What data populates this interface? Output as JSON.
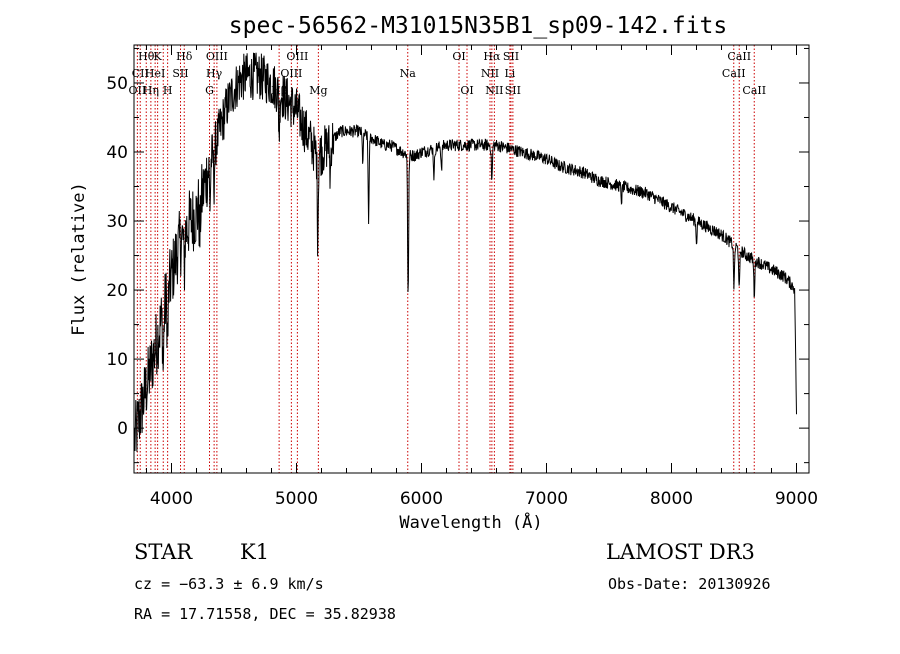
{
  "chart_data": {
    "type": "line",
    "title": "spec-56562-M31015N35B1_sp09-142.fits",
    "xlabel": "Wavelength (Å)",
    "ylabel": "Flux (relative)",
    "xlim": [
      3700,
      9100
    ],
    "ylim": [
      -6.5,
      55.5
    ],
    "xticks": [
      4000,
      5000,
      6000,
      7000,
      8000,
      9000
    ],
    "yticks": [
      0,
      10,
      20,
      30,
      40,
      50
    ],
    "grid": false,
    "series": [
      {
        "x": [
          3700,
          3750,
          3800,
          3850,
          3900,
          3950,
          4000,
          4050,
          4100,
          4150,
          4200,
          4250,
          4300,
          4350,
          4400,
          4450,
          4500,
          4550,
          4600,
          4650,
          4700,
          4750,
          4800,
          4850,
          4900,
          4950,
          5000,
          5050,
          5100,
          5150,
          5200,
          5250,
          5300,
          5350,
          5400,
          5450,
          5500,
          5550,
          5600,
          5650,
          5700,
          5750,
          5800,
          5850,
          5900,
          5950,
          6000,
          6100,
          6200,
          6300,
          6400,
          6500,
          6600,
          6700,
          6800,
          6900,
          7000,
          7100,
          7200,
          7300,
          7400,
          7500,
          7600,
          7700,
          7800,
          7900,
          8000,
          8100,
          8200,
          8300,
          8400,
          8500,
          8600,
          8700,
          8800,
          8900,
          9000
        ],
        "y": [
          -2,
          2,
          6,
          10,
          14,
          18,
          22,
          26,
          28,
          30,
          31,
          34,
          38,
          41,
          44,
          47,
          49,
          50.5,
          51,
          51,
          51,
          50.5,
          50,
          49,
          48,
          47,
          46,
          44,
          42,
          40,
          40,
          41,
          42,
          43,
          43,
          43,
          43,
          42.5,
          42,
          41.5,
          41,
          41,
          40.5,
          40,
          39.5,
          39.5,
          40,
          40.5,
          41,
          41,
          41,
          41,
          41,
          40.5,
          40,
          39.5,
          39,
          38,
          37.5,
          37,
          36,
          35.5,
          35,
          34.5,
          34,
          33,
          32,
          31,
          30,
          29,
          28,
          26.5,
          25,
          24,
          23,
          22,
          20
        ]
      }
    ],
    "dips": [
      {
        "x": 3934,
        "depth": 8
      },
      {
        "x": 3969,
        "depth": 7
      },
      {
        "x": 4102,
        "depth": 5
      },
      {
        "x": 4227,
        "depth": 5
      },
      {
        "x": 4308,
        "depth": 6
      },
      {
        "x": 4340,
        "depth": 5
      },
      {
        "x": 4861,
        "depth": 6
      },
      {
        "x": 5170,
        "depth": 12
      },
      {
        "x": 5270,
        "depth": 5
      },
      {
        "x": 5530,
        "depth": 4
      },
      {
        "x": 5577,
        "depth": 12
      },
      {
        "x": 5893,
        "depth": 20
      },
      {
        "x": 6100,
        "depth": 4
      },
      {
        "x": 6160,
        "depth": 3
      },
      {
        "x": 6563,
        "depth": 5
      },
      {
        "x": 7600,
        "depth": 2
      },
      {
        "x": 8200,
        "depth": 3
      },
      {
        "x": 8500,
        "depth": 6
      },
      {
        "x": 8542,
        "depth": 6
      },
      {
        "x": 8662,
        "depth": 5
      }
    ],
    "spectral_lines": [
      {
        "x": 3727,
        "label": "OII",
        "row": 2
      },
      {
        "x": 3750,
        "label": "CII",
        "row": 1
      },
      {
        "x": 3798,
        "label": "Hθ",
        "row": 0
      },
      {
        "x": 3835,
        "label": "Hη",
        "row": 2
      },
      {
        "x": 3869,
        "label": "HeI",
        "row": 1
      },
      {
        "x": 3889,
        "label": "K",
        "row": 0
      },
      {
        "x": 3934,
        "label": "",
        "row": 0
      },
      {
        "x": 3969,
        "label": "H",
        "row": 2
      },
      {
        "x": 4072,
        "label": "SII",
        "row": 1
      },
      {
        "x": 4102,
        "label": "Hδ",
        "row": 0
      },
      {
        "x": 4304,
        "label": "G",
        "row": 2
      },
      {
        "x": 4341,
        "label": "Hγ",
        "row": 1
      },
      {
        "x": 4363,
        "label": "OIII",
        "row": 0
      },
      {
        "x": 4861,
        "label": "Hβ",
        "row": 2
      },
      {
        "x": 4959,
        "label": "OIII",
        "row": 1
      },
      {
        "x": 5007,
        "label": "OIII",
        "row": 0
      },
      {
        "x": 5175,
        "label": "Mg",
        "row": 2
      },
      {
        "x": 5890,
        "label": "Na",
        "row": 1
      },
      {
        "x": 6300,
        "label": "OI",
        "row": 0
      },
      {
        "x": 6364,
        "label": "OI",
        "row": 2
      },
      {
        "x": 6548,
        "label": "NII",
        "row": 1
      },
      {
        "x": 6563,
        "label": "Hα",
        "row": 0
      },
      {
        "x": 6583,
        "label": "NII",
        "row": 2
      },
      {
        "x": 6707,
        "label": "Li",
        "row": 1
      },
      {
        "x": 6716,
        "label": "SII",
        "row": 0
      },
      {
        "x": 6731,
        "label": "SII",
        "row": 2
      },
      {
        "x": 8498,
        "label": "CaII",
        "row": 1
      },
      {
        "x": 8542,
        "label": "CaII",
        "row": 0
      },
      {
        "x": 8662,
        "label": "CaII",
        "row": 2
      }
    ],
    "line_color": "#cc0000",
    "spectrum_color": "#000000"
  },
  "info": {
    "class_label": "STAR",
    "subclass_label": "K1",
    "survey_label": "LAMOST DR3",
    "cz_text": "cz = −63.3 ± 6.9 km/s",
    "obs_date_text": "Obs-Date: 20130926",
    "coords_text": "RA =  17.71558, DEC =  35.82938"
  }
}
